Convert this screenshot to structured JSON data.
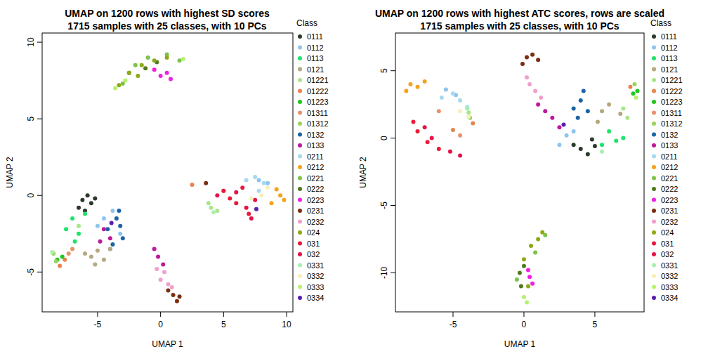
{
  "chart_data": [
    {
      "type": "scatter",
      "title": "UMAP on 1200 rows with highest SD scores",
      "subtitle": "1715 samples with 25 classes, with 10 PCs",
      "x_label": "UMAP 1",
      "y_label": "UMAP 2",
      "legend_title": "Class",
      "legend": "right",
      "marker": "circle",
      "xlim": [
        -9.4,
        10.5
      ],
      "ylim": [
        -7.6,
        10.6
      ],
      "xticks": [
        -5,
        0,
        5,
        10
      ],
      "yticks": [
        -5,
        0,
        5,
        10
      ],
      "series": [
        {
          "name": "0111",
          "color": "#2b3a2b",
          "x": [
            -6.2,
            -5.8,
            -5.5,
            -6.5,
            -5.2,
            -6.0
          ],
          "values": [
            -0.3,
            0.0,
            -0.5,
            -0.8,
            -0.2,
            -1.0
          ]
        },
        {
          "name": "0112",
          "color": "#8ec5f0",
          "x": [
            -4.5,
            -3.8,
            -3.2,
            -5.0,
            -4.0,
            7.8,
            8.5
          ],
          "values": [
            -1.5,
            -1.0,
            -2.5,
            -2.0,
            -3.5,
            1.0,
            0.8
          ]
        },
        {
          "name": "0113",
          "color": "#1ee36a",
          "x": [
            -7.0,
            -6.5,
            -7.5,
            -6.0,
            -6.8
          ],
          "values": [
            -1.5,
            -2.5,
            -2.2,
            -1.2,
            -3.0
          ]
        },
        {
          "name": "0121",
          "color": "#b5a77f",
          "x": [
            -5.5,
            -5.0,
            -4.5,
            -6.0,
            -4.0,
            -5.2
          ],
          "values": [
            -4.0,
            -3.6,
            -4.2,
            -3.8,
            -3.5,
            -4.5
          ]
        },
        {
          "name": "01221",
          "color": "#a8e68a",
          "x": [
            4.0,
            4.5,
            3.8,
            -6.5
          ],
          "values": [
            -0.8,
            -1.0,
            -0.5,
            -2.0
          ]
        },
        {
          "name": "01222",
          "color": "#e8834f",
          "x": [
            -8.0,
            -7.6,
            2.5
          ],
          "values": [
            -4.6,
            -4.2,
            0.7
          ]
        },
        {
          "name": "01223",
          "color": "#1ec81e",
          "x": [
            -8.2,
            -7.8
          ],
          "values": [
            -4.2,
            -4.0
          ]
        },
        {
          "name": "01311",
          "color": "#e8926a",
          "x": [
            -7.3,
            -7.0,
            5.0
          ],
          "values": [
            -3.8,
            -3.5,
            0.3
          ]
        },
        {
          "name": "01312",
          "color": "#9cd35a",
          "x": [
            -8.5,
            -8.3
          ],
          "values": [
            -3.8,
            -4.3
          ]
        },
        {
          "name": "0132",
          "color": "#1a63a8",
          "x": [
            -3.5,
            -3.2,
            -3.0,
            -3.8,
            -3.3,
            -4.2
          ],
          "values": [
            -1.5,
            -2.0,
            -2.8,
            -3.2,
            -1.0,
            -2.2
          ]
        },
        {
          "name": "0133",
          "color": "#c0189c",
          "x": [
            -4.5,
            -4.0,
            -4.8,
            -0.5,
            -0.2,
            0.2
          ],
          "values": [
            -2.2,
            -2.8,
            -3.0,
            -3.5,
            -4.0,
            -4.5
          ]
        },
        {
          "name": "0211",
          "color": "#a6d8f0",
          "x": [
            7.5,
            8.2,
            6.8,
            7.8
          ],
          "values": [
            1.2,
            0.8,
            1.0,
            0.3
          ]
        },
        {
          "name": "0212",
          "color": "#f5a21c",
          "x": [
            9.5,
            9.2,
            9.8,
            8.8
          ],
          "values": [
            0.0,
            0.4,
            -0.3,
            -0.5
          ]
        },
        {
          "name": "0221",
          "color": "#7dc24a",
          "x": [
            -2.0,
            -1.0,
            0.5,
            1.5,
            -3.0
          ],
          "values": [
            8.5,
            9.0,
            9.2,
            8.8,
            7.3
          ]
        },
        {
          "name": "0222",
          "color": "#4f7a1e",
          "x": [
            -1.2,
            -0.3,
            -2.5
          ],
          "values": [
            8.3,
            8.7,
            8.0
          ]
        },
        {
          "name": "0223",
          "color": "#f01ee0",
          "x": [
            0.0,
            0.5,
            -0.5,
            0.8
          ],
          "values": [
            7.8,
            8.0,
            8.2,
            7.6
          ]
        },
        {
          "name": "0231",
          "color": "#7a2e10",
          "x": [
            1.0,
            1.3,
            0.6,
            1.5,
            3.6
          ],
          "values": [
            -6.5,
            -6.9,
            -6.2,
            -6.6,
            0.8
          ]
        },
        {
          "name": "0232",
          "color": "#f0a0cc",
          "x": [
            0.3,
            0.0,
            0.6,
            -0.3,
            0.9
          ],
          "values": [
            -5.0,
            -5.5,
            -5.8,
            -4.8,
            -6.0
          ]
        },
        {
          "name": "024",
          "color": "#8aab14",
          "x": [
            -2.5,
            -1.5,
            -0.5,
            0.5,
            -3.3,
            -1.8
          ],
          "values": [
            8.0,
            8.5,
            8.8,
            9.0,
            7.2,
            7.8
          ]
        },
        {
          "name": "031",
          "color": "#ea1a3b",
          "x": [
            5.0,
            6.0,
            7.0,
            5.5,
            6.5
          ],
          "values": [
            0.3,
            -0.5,
            -1.2,
            -0.2,
            0.5
          ]
        },
        {
          "name": "032",
          "color": "#e31448",
          "x": [
            6.0,
            7.2,
            4.5,
            6.8,
            7.5
          ],
          "values": [
            0.2,
            -1.5,
            0.0,
            -0.8,
            -0.3
          ]
        },
        {
          "name": "0331",
          "color": "#a8f0b0",
          "x": [
            4.2,
            -8.6
          ],
          "values": [
            -1.1,
            -3.7
          ]
        },
        {
          "name": "0332",
          "color": "#f7efb8",
          "x": [
            8.0,
            8.5,
            7.2
          ],
          "values": [
            0.0,
            0.5,
            -0.2
          ]
        },
        {
          "name": "0333",
          "color": "#b8f070",
          "x": [
            -3.6,
            1.8,
            -2.8
          ],
          "values": [
            7.0,
            8.9,
            7.5
          ]
        },
        {
          "name": "0334",
          "color": "#5a1fb0",
          "x": [
            -3.9,
            7.6
          ],
          "values": [
            -1.8,
            -0.9
          ]
        }
      ]
    },
    {
      "type": "scatter",
      "title": "UMAP on 1200 rows with highest ATC scores, rows are scaled",
      "subtitle": "1715 samples with 25 classes, with 10 PCs",
      "x_label": "UMAP 1",
      "y_label": "UMAP 2",
      "legend_title": "Class",
      "legend": "right",
      "marker": "circle",
      "xlim": [
        -9.06,
        8.47
      ],
      "ylim": [
        -12.9,
        7.8
      ],
      "xticks": [
        -5,
        0,
        5
      ],
      "yticks": [
        -10,
        -5,
        0,
        5
      ],
      "series": [
        {
          "name": "0111",
          "color": "#2b3a2b",
          "x": [
            4.0,
            4.5,
            5.0,
            3.5,
            4.8
          ],
          "values": [
            -0.8,
            -1.2,
            -0.6,
            -0.5,
            -0.1
          ]
        },
        {
          "name": "0112",
          "color": "#8ec5f0",
          "x": [
            3.0,
            2.5,
            3.5,
            -5.5,
            -4.8
          ],
          "values": [
            0.2,
            -0.5,
            0.5,
            3.6,
            3.2
          ]
        },
        {
          "name": "0113",
          "color": "#1ee36a",
          "x": [
            5.5,
            6.5,
            6.0,
            7.0
          ],
          "values": [
            -0.5,
            -0.2,
            0.5,
            0.0
          ]
        },
        {
          "name": "0121",
          "color": "#b5a77f",
          "x": [
            5.5,
            6.0,
            6.8,
            5.2
          ],
          "values": [
            2.0,
            2.5,
            1.8,
            1.2
          ]
        },
        {
          "name": "01221",
          "color": "#a8e68a",
          "x": [
            7.3,
            -3.9,
            7.0
          ],
          "values": [
            1.5,
            1.9,
            2.2
          ]
        },
        {
          "name": "01222",
          "color": "#e8834f",
          "x": [
            7.5,
            -5.0,
            -3.6
          ],
          "values": [
            3.8,
            0.6,
            1.1
          ]
        },
        {
          "name": "01223",
          "color": "#1ec81e",
          "x": [
            8.0,
            7.7
          ],
          "values": [
            3.5,
            3.3
          ]
        },
        {
          "name": "01311",
          "color": "#e8926a",
          "x": [
            -6.0,
            -4.5
          ],
          "values": [
            2.0,
            0.2
          ]
        },
        {
          "name": "01312",
          "color": "#9cd35a",
          "x": [
            7.8,
            -3.8
          ],
          "values": [
            4.0,
            1.5
          ]
        },
        {
          "name": "0132",
          "color": "#1a63a8",
          "x": [
            4.0,
            3.5,
            4.5,
            3.8,
            4.2
          ],
          "values": [
            2.8,
            2.2,
            2.0,
            1.5,
            3.5
          ]
        },
        {
          "name": "0133",
          "color": "#c0189c",
          "x": [
            2.0,
            1.5,
            2.5,
            1.0
          ],
          "values": [
            1.5,
            2.0,
            0.8,
            2.5
          ]
        },
        {
          "name": "0211",
          "color": "#a6d8f0",
          "x": [
            -5.0,
            -4.5,
            -5.8,
            -4.0
          ],
          "values": [
            3.3,
            2.8,
            3.0,
            2.3
          ]
        },
        {
          "name": "0212",
          "color": "#f5a21c",
          "x": [
            -8.0,
            -7.5,
            -8.3,
            -7.0
          ],
          "values": [
            4.0,
            3.8,
            3.5,
            4.2
          ]
        },
        {
          "name": "0221",
          "color": "#7dc24a",
          "x": [
            -0.5,
            0.8,
            1.5
          ],
          "values": [
            -10.5,
            -8.5,
            -7.2
          ]
        },
        {
          "name": "0222",
          "color": "#4f7a1e",
          "x": [
            -0.3,
            0.0,
            -0.2
          ],
          "values": [
            -10.0,
            -9.5,
            -11.0
          ]
        },
        {
          "name": "0223",
          "color": "#f01ee0",
          "x": [
            0.4,
            0.6,
            0.3
          ],
          "values": [
            -10.3,
            -10.8,
            -9.8
          ]
        },
        {
          "name": "0231",
          "color": "#7a2e10",
          "x": [
            0.2,
            0.6,
            1.0,
            -0.1
          ],
          "values": [
            6.0,
            6.2,
            5.8,
            5.5
          ]
        },
        {
          "name": "0232",
          "color": "#f0a0cc",
          "x": [
            0.4,
            0.8,
            0.2,
            1.2
          ],
          "values": [
            4.0,
            3.5,
            4.5,
            3.0
          ]
        },
        {
          "name": "024",
          "color": "#8aab14",
          "x": [
            0.5,
            1.0,
            0.0,
            0.3,
            1.3
          ],
          "values": [
            -8.0,
            -7.5,
            -9.0,
            -11.0,
            -7.0
          ]
        },
        {
          "name": "031",
          "color": "#ea1a3b",
          "x": [
            -7.5,
            -6.8,
            -6.0,
            -7.8
          ],
          "values": [
            0.5,
            -0.3,
            -0.8,
            1.2
          ]
        },
        {
          "name": "032",
          "color": "#e31448",
          "x": [
            -5.2,
            -4.5,
            -7.0,
            -6.5
          ],
          "values": [
            -1.0,
            -1.3,
            0.8,
            0.0
          ]
        },
        {
          "name": "0331",
          "color": "#a8f0b0",
          "x": [
            -4.0,
            5.5
          ],
          "values": [
            2.2,
            -1.0
          ]
        },
        {
          "name": "0332",
          "color": "#f7efb8",
          "x": [
            -4.5,
            -3.9
          ],
          "values": [
            2.0,
            1.6
          ]
        },
        {
          "name": "0333",
          "color": "#b8f070",
          "x": [
            0.0,
            0.2,
            7.9
          ],
          "values": [
            -11.8,
            -12.2,
            3.0
          ]
        },
        {
          "name": "0334",
          "color": "#5a1fb0",
          "x": [
            2.8
          ],
          "values": [
            1.0
          ]
        }
      ]
    }
  ]
}
